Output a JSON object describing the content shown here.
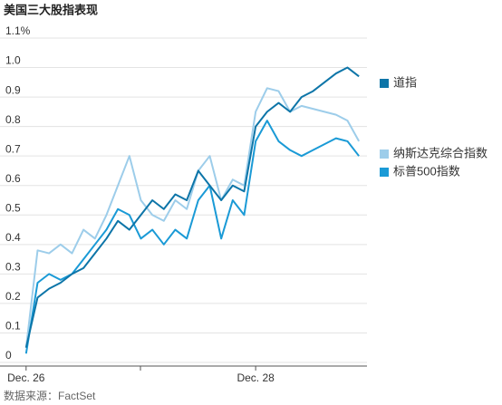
{
  "chart_data": {
    "type": "line",
    "title": "美国三大股指表现",
    "source": "数据来源：FactSet",
    "x": [
      0,
      0.1,
      0.2,
      0.3,
      0.4,
      0.5,
      0.6,
      0.7,
      0.8,
      0.9,
      1.0,
      1.1,
      1.2,
      1.3,
      1.4,
      1.5,
      1.6,
      1.7,
      1.8,
      1.9,
      2.0,
      2.1,
      2.2,
      2.3,
      2.4,
      2.5,
      2.6,
      2.7,
      2.8,
      2.9
    ],
    "xlim": [
      -0.03,
      2.97
    ],
    "xticks": [
      {
        "value": 0,
        "label": "Dec. 26"
      },
      {
        "value": 2,
        "label": "Dec. 28"
      }
    ],
    "ylim": [
      0,
      1.1
    ],
    "yticks": [
      0,
      0.1,
      0.2,
      0.3,
      0.4,
      0.5,
      0.6,
      0.7,
      0.8,
      0.9,
      {
        "value": 1,
        "label": "1.0"
      },
      {
        "value": 1.1,
        "label": "1.1%"
      }
    ],
    "grid": true,
    "legend": "right",
    "series": [
      {
        "name": "道指",
        "color": "#0d75a8",
        "values": [
          0.05,
          0.22,
          0.25,
          0.27,
          0.3,
          0.32,
          0.37,
          0.42,
          0.48,
          0.45,
          0.5,
          0.55,
          0.52,
          0.57,
          0.55,
          0.65,
          0.6,
          0.55,
          0.6,
          0.58,
          0.8,
          0.85,
          0.88,
          0.85,
          0.9,
          0.92,
          0.95,
          0.98,
          1.0,
          0.97
        ]
      },
      {
        "name": "纳斯达克综合指数",
        "color": "#9dcdea",
        "values": [
          0.05,
          0.38,
          0.37,
          0.4,
          0.37,
          0.45,
          0.42,
          0.5,
          0.6,
          0.7,
          0.55,
          0.5,
          0.48,
          0.55,
          0.52,
          0.65,
          0.7,
          0.55,
          0.62,
          0.6,
          0.85,
          0.93,
          0.92,
          0.85,
          0.87,
          0.86,
          0.85,
          0.84,
          0.82,
          0.75
        ]
      },
      {
        "name": "标普500指数",
        "color": "#1a9ad6",
        "values": [
          0.03,
          0.27,
          0.3,
          0.28,
          0.3,
          0.35,
          0.4,
          0.45,
          0.52,
          0.5,
          0.42,
          0.45,
          0.4,
          0.45,
          0.42,
          0.55,
          0.6,
          0.42,
          0.55,
          0.5,
          0.75,
          0.82,
          0.75,
          0.72,
          0.7,
          0.72,
          0.74,
          0.76,
          0.75,
          0.7
        ]
      }
    ]
  }
}
